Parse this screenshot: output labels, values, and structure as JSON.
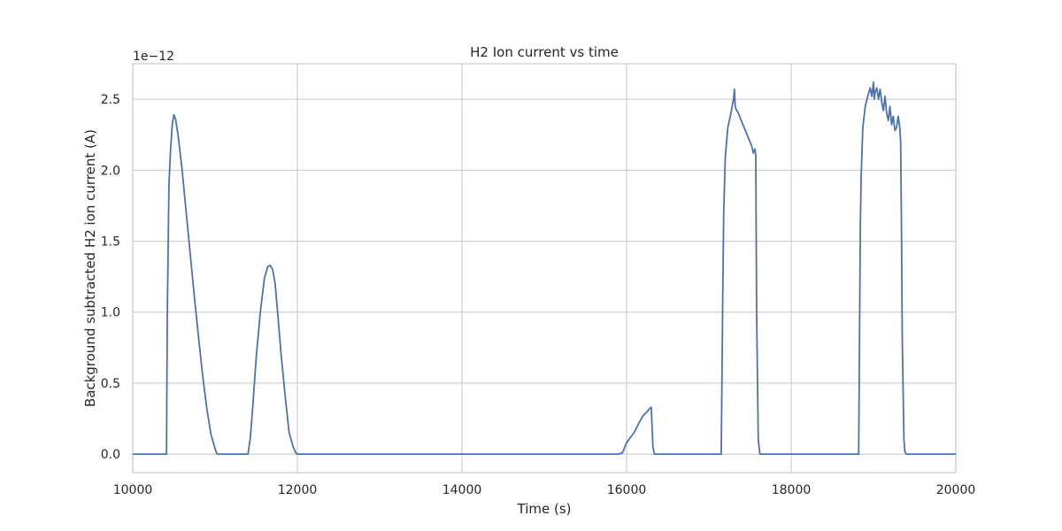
{
  "chart_data": {
    "type": "line",
    "title": "H2 Ion current vs time",
    "xlabel": "Time (s)",
    "ylabel": "Background subtracted H2 ion current (A)",
    "y_offset_label": "1e−12",
    "y_scale": 1e-12,
    "xlim": [
      10000,
      20000
    ],
    "ylim": [
      -0.13,
      2.75
    ],
    "x_ticks": [
      10000,
      12000,
      14000,
      16000,
      18000,
      20000
    ],
    "x_tick_labels": [
      "10000",
      "12000",
      "14000",
      "16000",
      "18000",
      "20000"
    ],
    "y_ticks": [
      0.0,
      0.5,
      1.0,
      1.5,
      2.0,
      2.5
    ],
    "y_tick_labels": [
      "0.0",
      "0.5",
      "1.0",
      "1.5",
      "2.0",
      "2.5"
    ],
    "grid": true,
    "colors": {
      "line": "#4c72b0",
      "grid": "#cccccc",
      "frame": "#cccccc"
    },
    "series": [
      {
        "x": [
          10000,
          10400,
          10410,
          10420,
          10440,
          10460,
          10480,
          10500,
          10520,
          10550,
          10600,
          10650,
          10700,
          10750,
          10800,
          10850,
          10900,
          10950,
          11000,
          11020,
          11040,
          11060,
          11400,
          11430,
          11460,
          11500,
          11550,
          11600,
          11640,
          11670,
          11700,
          11730,
          11760,
          11800,
          11850,
          11900,
          11950,
          11980,
          12000,
          15900,
          15950,
          16000,
          16050,
          16100,
          16150,
          16200,
          16250,
          16280,
          16300,
          16320,
          16340,
          17150,
          17160,
          17170,
          17180,
          17200,
          17230,
          17260,
          17280,
          17300,
          17310,
          17320,
          17330,
          17360,
          17400,
          17450,
          17500,
          17520,
          17540,
          17560,
          17570,
          17580,
          17600,
          17620,
          18820,
          18830,
          18840,
          18850,
          18870,
          18900,
          18930,
          18960,
          18980,
          19000,
          19010,
          19020,
          19040,
          19060,
          19080,
          19100,
          19120,
          19140,
          19160,
          19180,
          19200,
          19220,
          19240,
          19260,
          19280,
          19300,
          19320,
          19330,
          19340,
          19350,
          19370,
          19380,
          19400,
          20000
        ],
        "y": [
          0,
          0,
          0,
          1.0,
          1.9,
          2.15,
          2.32,
          2.39,
          2.36,
          2.25,
          2.0,
          1.7,
          1.4,
          1.1,
          0.82,
          0.55,
          0.32,
          0.14,
          0.04,
          0.005,
          0,
          0,
          0,
          0.12,
          0.35,
          0.68,
          1.0,
          1.24,
          1.32,
          1.33,
          1.3,
          1.2,
          1.0,
          0.72,
          0.42,
          0.15,
          0.05,
          0.01,
          0,
          0,
          0.01,
          0.08,
          0.12,
          0.16,
          0.22,
          0.27,
          0.3,
          0.32,
          0.33,
          0.05,
          0,
          0,
          0.6,
          1.2,
          1.7,
          2.1,
          2.3,
          2.38,
          2.44,
          2.5,
          2.57,
          2.45,
          2.43,
          2.4,
          2.34,
          2.27,
          2.2,
          2.17,
          2.12,
          2.15,
          2.1,
          1.0,
          0.1,
          0,
          0,
          0.8,
          1.6,
          1.95,
          2.3,
          2.45,
          2.52,
          2.58,
          2.52,
          2.62,
          2.5,
          2.55,
          2.58,
          2.5,
          2.57,
          2.48,
          2.42,
          2.52,
          2.4,
          2.35,
          2.45,
          2.32,
          2.38,
          2.28,
          2.3,
          2.38,
          2.3,
          2.2,
          1.6,
          0.8,
          0.1,
          0.02,
          0,
          0
        ]
      }
    ]
  }
}
